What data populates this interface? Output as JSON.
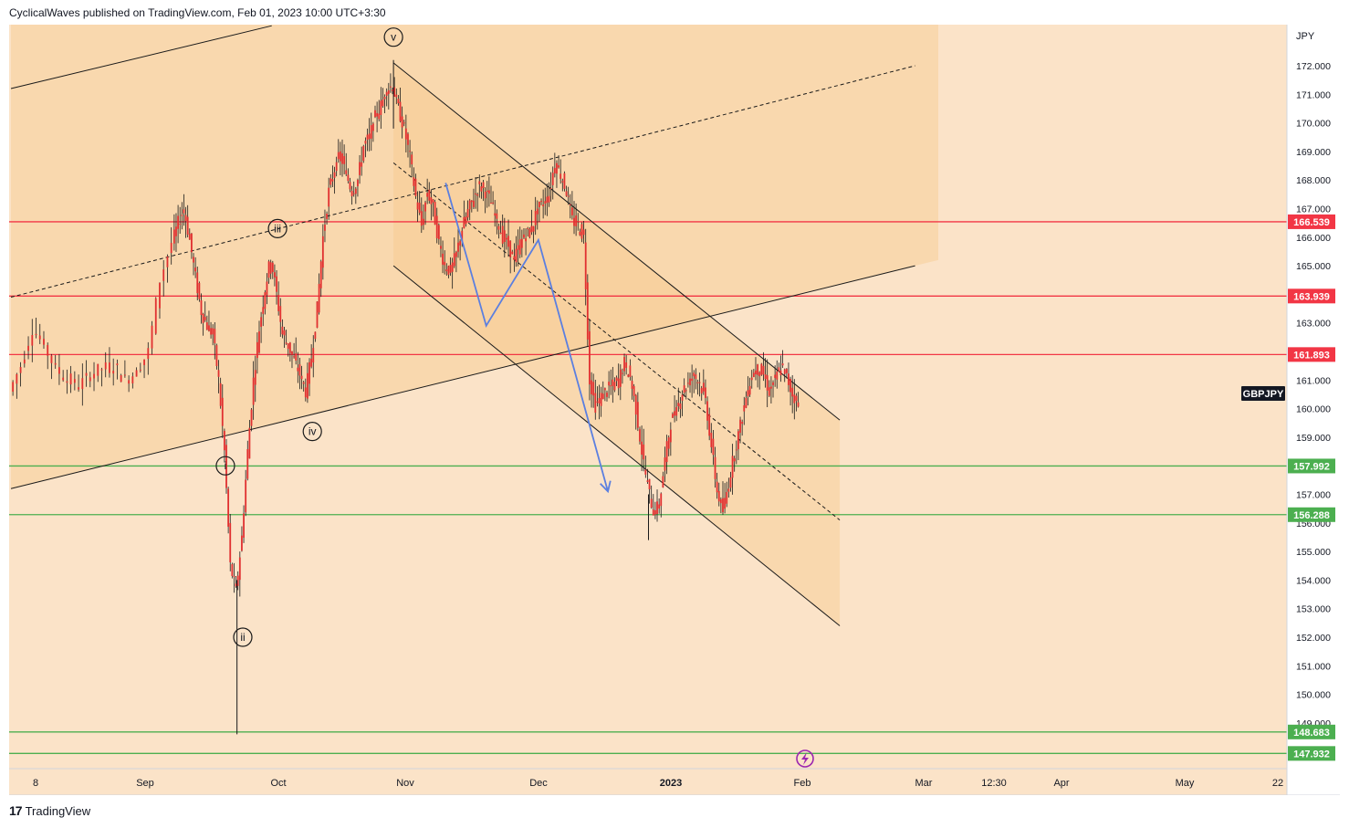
{
  "header": {
    "publisher_line": "CyclicalWaves published on TradingView.com, Feb 01, 2023 10:00 UTC+3:30"
  },
  "footer": {
    "brand": "TradingView",
    "logo_glyph": "17"
  },
  "colors": {
    "background": "#fbe3c8",
    "channel_fill": "#f7c98f",
    "red_level": "#f23645",
    "green_level": "#4caf50",
    "candle": "#e03030",
    "wick": "#1a1a1a",
    "arrow": "#5b7fe0",
    "badge_text": "#ffffff",
    "symbol_badge": "#131722",
    "lightning": "#9c27b0"
  },
  "chart_data": {
    "type": "candlestick",
    "symbol": "GBPJPY",
    "currency": "JPY",
    "ylim": [
      148.0,
      173.2
    ],
    "y_ticks": [
      "149.000",
      "150.000",
      "151.000",
      "152.000",
      "153.000",
      "154.000",
      "155.000",
      "156.000",
      "157.000",
      "159.000",
      "160.000",
      "161.000",
      "163.000",
      "165.000",
      "166.000",
      "167.000",
      "168.000",
      "169.000",
      "170.000",
      "171.000",
      "172.000"
    ],
    "x_ticks": [
      "8",
      "Sep",
      "Oct",
      "Nov",
      "Dec",
      "2023",
      "Feb",
      "Mar",
      "12:30",
      "Apr",
      "May",
      "22"
    ],
    "price_levels": [
      {
        "label": "166.539",
        "value": 166.539,
        "kind": "red"
      },
      {
        "label": "163.939",
        "value": 163.939,
        "kind": "red"
      },
      {
        "label": "161.893",
        "value": 161.893,
        "kind": "red"
      },
      {
        "label": "157.992",
        "value": 157.992,
        "kind": "green"
      },
      {
        "label": "156.288",
        "value": 156.288,
        "kind": "green"
      },
      {
        "label": "148.683",
        "value": 148.683,
        "kind": "green"
      },
      {
        "label": "147.932",
        "value": 147.932,
        "kind": "green"
      }
    ],
    "wave_labels": [
      {
        "text": "i",
        "day": 37,
        "price": 158.0
      },
      {
        "text": "ii",
        "day": 40,
        "price": 152.0
      },
      {
        "text": "iii",
        "day": 46,
        "price": 166.3
      },
      {
        "text": "iv",
        "day": 52,
        "price": 159.2
      },
      {
        "text": "v",
        "day": 66,
        "price": 173.0
      }
    ],
    "price_path": [
      [
        0,
        160.6
      ],
      [
        2,
        161.5
      ],
      [
        4,
        162.8
      ],
      [
        6,
        162.2
      ],
      [
        8,
        161.4
      ],
      [
        10,
        161.0
      ],
      [
        12,
        160.8
      ],
      [
        14,
        161.2
      ],
      [
        16,
        161.4
      ],
      [
        18,
        161.5
      ],
      [
        20,
        161.0
      ],
      [
        22,
        161.3
      ],
      [
        24,
        162.0
      ],
      [
        26,
        164.5
      ],
      [
        28,
        165.8
      ],
      [
        29,
        166.5
      ],
      [
        30,
        167.0
      ],
      [
        31,
        165.9
      ],
      [
        32,
        164.6
      ],
      [
        33,
        163.4
      ],
      [
        34,
        162.9
      ],
      [
        35,
        162.6
      ],
      [
        36,
        161.0
      ],
      [
        37,
        158.5
      ],
      [
        38,
        154.5
      ],
      [
        39,
        153.6
      ],
      [
        40,
        155.5
      ],
      [
        41,
        158.5
      ],
      [
        42,
        161.0
      ],
      [
        43,
        162.8
      ],
      [
        44,
        164.2
      ],
      [
        45,
        165.3
      ],
      [
        46,
        164.0
      ],
      [
        47,
        162.6
      ],
      [
        48,
        162.2
      ],
      [
        49,
        161.7
      ],
      [
        50,
        161.2
      ],
      [
        51,
        160.6
      ],
      [
        52,
        161.8
      ],
      [
        53,
        163.5
      ],
      [
        54,
        166.0
      ],
      [
        55,
        167.6
      ],
      [
        56,
        168.4
      ],
      [
        57,
        168.9
      ],
      [
        58,
        168.2
      ],
      [
        59,
        167.6
      ],
      [
        60,
        168.0
      ],
      [
        61,
        169.2
      ],
      [
        62,
        169.5
      ],
      [
        63,
        170.2
      ],
      [
        64,
        170.6
      ],
      [
        65,
        171.2
      ],
      [
        66,
        171.3
      ],
      [
        67,
        170.5
      ],
      [
        68,
        169.8
      ],
      [
        69,
        168.8
      ],
      [
        70,
        167.4
      ],
      [
        71,
        166.4
      ],
      [
        72,
        167.6
      ],
      [
        73,
        167.0
      ],
      [
        74,
        165.8
      ],
      [
        75,
        165.0
      ],
      [
        76,
        164.8
      ],
      [
        77,
        165.4
      ],
      [
        78,
        166.3
      ],
      [
        79,
        166.9
      ],
      [
        80,
        167.4
      ],
      [
        81,
        167.8
      ],
      [
        82,
        167.6
      ],
      [
        83,
        167.2
      ],
      [
        84,
        166.6
      ],
      [
        85,
        166.0
      ],
      [
        86,
        165.7
      ],
      [
        87,
        165.2
      ],
      [
        88,
        165.8
      ],
      [
        89,
        166.1
      ],
      [
        90,
        166.3
      ],
      [
        91,
        167.0
      ],
      [
        92,
        167.2
      ],
      [
        93,
        167.5
      ],
      [
        94,
        168.6
      ],
      [
        95,
        168.2
      ],
      [
        96,
        167.6
      ],
      [
        97,
        166.6
      ],
      [
        98,
        166.4
      ],
      [
        99,
        166.0
      ],
      [
        100,
        161.0
      ],
      [
        101,
        160.1
      ],
      [
        102,
        160.4
      ],
      [
        103,
        160.7
      ],
      [
        104,
        160.8
      ],
      [
        105,
        161.0
      ],
      [
        106,
        161.6
      ],
      [
        107,
        161.1
      ],
      [
        108,
        160.0
      ],
      [
        109,
        158.5
      ],
      [
        110,
        157.3
      ],
      [
        111,
        156.4
      ],
      [
        112,
        156.6
      ],
      [
        113,
        158.2
      ],
      [
        114,
        159.5
      ],
      [
        115,
        160.0
      ],
      [
        116,
        160.6
      ],
      [
        117,
        160.9
      ],
      [
        118,
        161.2
      ],
      [
        119,
        160.9
      ],
      [
        120,
        160.3
      ],
      [
        121,
        158.7
      ],
      [
        122,
        157.1
      ],
      [
        123,
        156.4
      ],
      [
        124,
        157.4
      ],
      [
        125,
        158.5
      ],
      [
        126,
        159.4
      ],
      [
        127,
        160.4
      ],
      [
        128,
        161.2
      ],
      [
        129,
        161.4
      ],
      [
        130,
        161.2
      ],
      [
        131,
        160.6
      ],
      [
        132,
        161.0
      ],
      [
        133,
        161.5
      ],
      [
        134,
        161.1
      ],
      [
        135,
        160.5
      ],
      [
        136,
        160.2
      ]
    ],
    "arrow_path": [
      [
        75,
        167.9
      ],
      [
        82,
        162.9
      ],
      [
        91,
        165.9
      ],
      [
        103,
        157.1
      ]
    ],
    "channels": [
      {
        "name": "rising-upper",
        "kind": "solid",
        "from": [
          0,
          171.2
        ],
        "to": [
          45,
          173.4
        ]
      },
      {
        "name": "rising-mid",
        "kind": "dashed",
        "from": [
          0,
          163.9
        ],
        "to": [
          156,
          172.0
        ]
      },
      {
        "name": "rising-lower",
        "kind": "solid",
        "from": [
          0,
          157.2
        ],
        "to": [
          156,
          165.0
        ]
      },
      {
        "name": "falling-upper",
        "kind": "solid",
        "from": [
          66,
          172.1
        ],
        "to": [
          143,
          159.6
        ]
      },
      {
        "name": "falling-mid",
        "kind": "dashed",
        "from": [
          66,
          168.6
        ],
        "to": [
          143,
          156.1
        ]
      },
      {
        "name": "falling-lower",
        "kind": "solid",
        "from": [
          66,
          165.0
        ],
        "to": [
          143,
          152.4
        ]
      }
    ],
    "grid": false,
    "legend": "none"
  }
}
